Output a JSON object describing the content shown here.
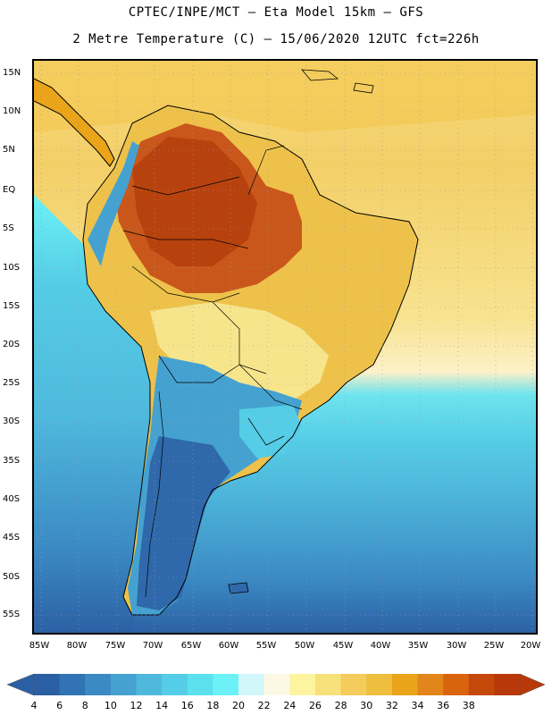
{
  "header": {
    "line1": "CPTEC/INPE/MCT  –  Eta Model 15km  –  GFS",
    "line2": "2 Metre Temperature (C) – 15/06/2020 12UTC fct=226h"
  },
  "map": {
    "lat_labels": [
      "15N",
      "10N",
      "5N",
      "EQ",
      "5S",
      "10S",
      "15S",
      "20S",
      "25S",
      "30S",
      "35S",
      "40S",
      "45S",
      "50S",
      "55S"
    ],
    "lon_labels": [
      "85W",
      "80W",
      "75W",
      "70W",
      "65W",
      "60W",
      "55W",
      "50W",
      "45W",
      "40W",
      "35W",
      "30W",
      "25W",
      "20W"
    ]
  },
  "colorbar": {
    "labels": [
      "4",
      "6",
      "8",
      "10",
      "12",
      "14",
      "16",
      "18",
      "20",
      "22",
      "24",
      "26",
      "28",
      "30",
      "32",
      "34",
      "36",
      "38"
    ],
    "colors": [
      "#2b5fa3",
      "#3273b5",
      "#3b8ac4",
      "#45a2d0",
      "#4fb9dd",
      "#55cde6",
      "#5ce0ee",
      "#6cf2f6",
      "#d2f7fb",
      "#fdf8e4",
      "#fdf4a0",
      "#f8e07a",
      "#f3cc5c",
      "#eebf3f",
      "#e9a419",
      "#e2861b",
      "#d9640e",
      "#c4480a",
      "#b8380a"
    ]
  }
}
